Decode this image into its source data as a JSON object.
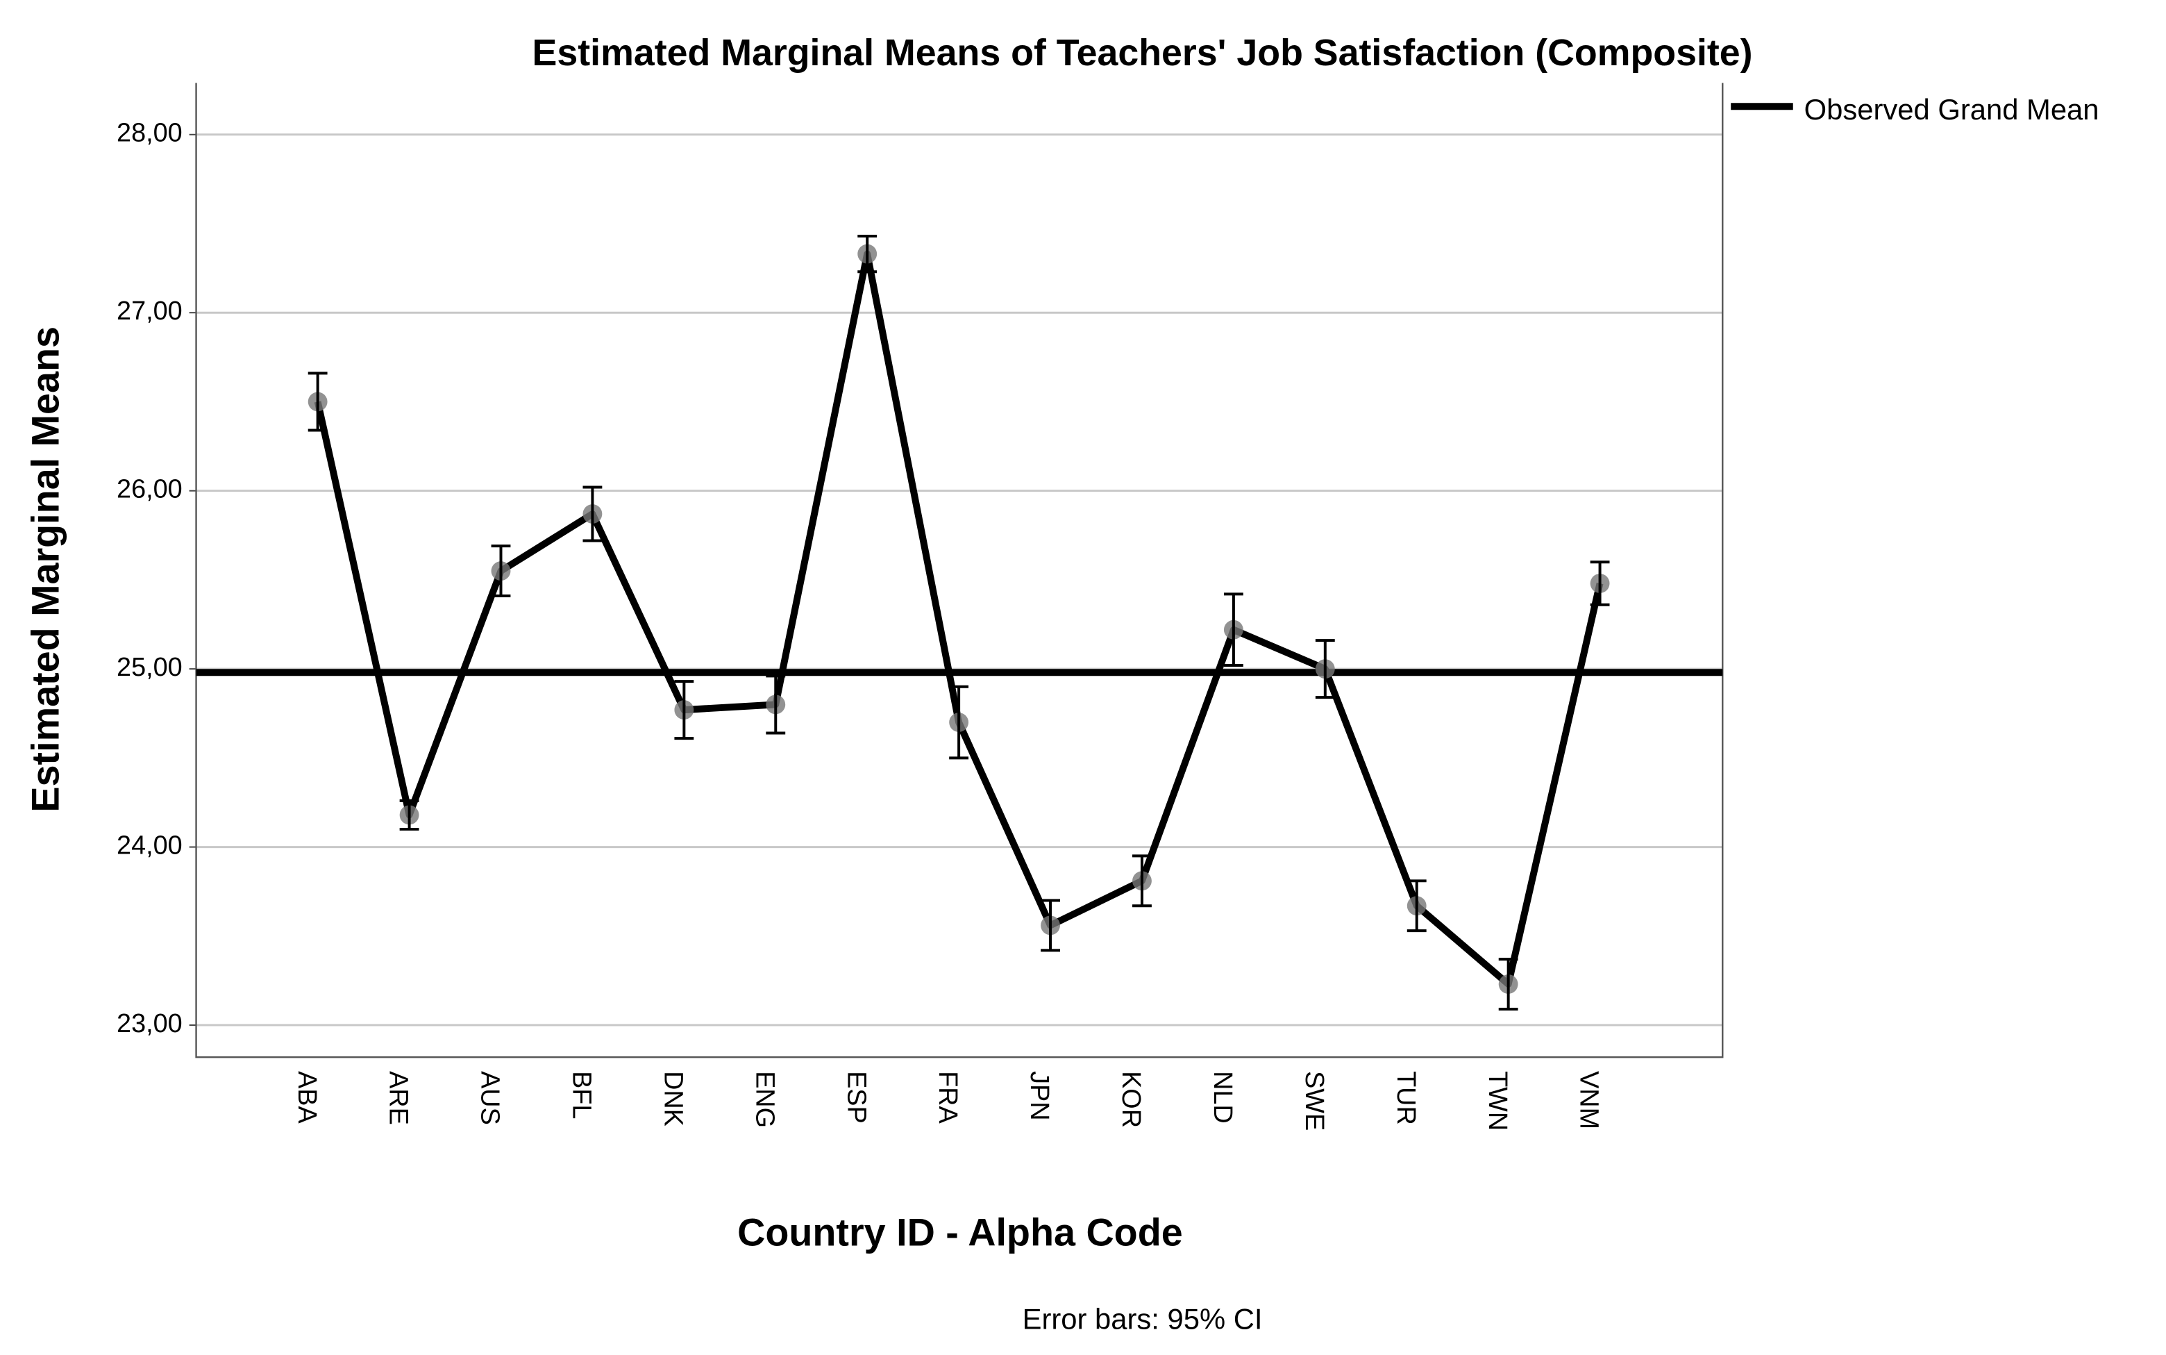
{
  "chart_data": {
    "type": "line",
    "title": "Estimated Marginal Means of Teachers' Job Satisfaction (Composite)",
    "x_label": "Country ID - Alpha Code",
    "y_label": "Estimated Marginal Means",
    "note": "Error bars: 95% CI",
    "categories": [
      "ABA",
      "ARE",
      "AUS",
      "BFL",
      "DNK",
      "ENG",
      "ESP",
      "FRA",
      "JPN",
      "KOR",
      "NLD",
      "SWE",
      "TUR",
      "TWN",
      "VNM"
    ],
    "series": [
      {
        "color": "#000000",
        "marker_color": "#777777",
        "values": [
          26.5,
          24.18,
          25.55,
          25.87,
          24.77,
          24.8,
          27.33,
          24.7,
          23.56,
          23.81,
          25.22,
          25.0,
          23.67,
          23.23,
          25.48
        ],
        "errors": [
          0.16,
          0.08,
          0.14,
          0.15,
          0.16,
          0.16,
          0.1,
          0.2,
          0.14,
          0.14,
          0.2,
          0.16,
          0.14,
          0.14,
          0.12
        ]
      }
    ],
    "reference_lines": [
      {
        "name": "Observed Grand Mean",
        "value": 24.98,
        "color": "#000000"
      }
    ],
    "ylim": [
      22.82,
      28.29
    ],
    "yticks": [
      {
        "value": 23,
        "label": "23,00"
      },
      {
        "value": 24,
        "label": "24,00"
      },
      {
        "value": 25,
        "label": "25,00"
      },
      {
        "value": 26,
        "label": "26,00"
      },
      {
        "value": 27,
        "label": "27,00"
      },
      {
        "value": 28,
        "label": "28,00"
      }
    ],
    "grid": true,
    "legend": "top-right"
  }
}
